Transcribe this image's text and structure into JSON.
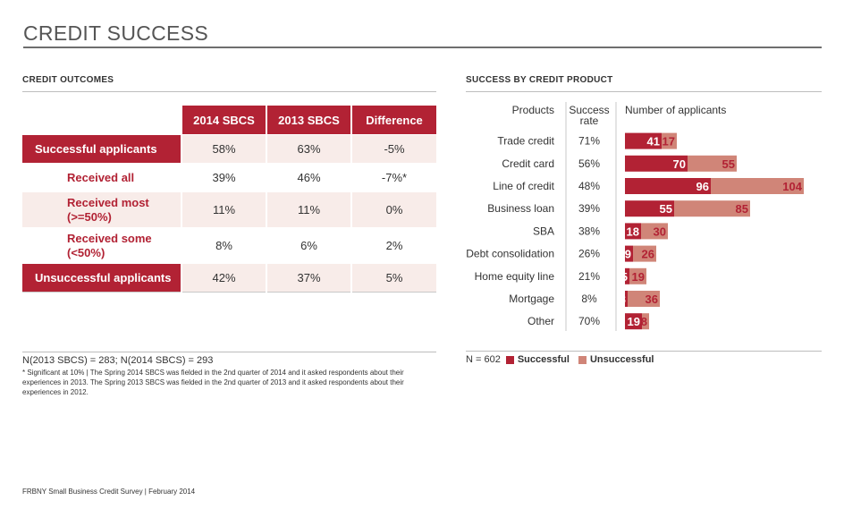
{
  "page": {
    "title": "CREDIT SUCCESS",
    "footer": "FRBNY Small Business Credit Survey  |  February 2014"
  },
  "outcomes": {
    "heading": "CREDIT OUTCOMES",
    "columns": [
      "2014 SBCS",
      "2013 SBCS",
      "Difference"
    ],
    "rows": [
      {
        "label": "Successful applicants",
        "values": [
          "58%",
          "63%",
          "-5%"
        ]
      },
      {
        "label": "Received all",
        "values": [
          "39%",
          "46%",
          "-7%*"
        ]
      },
      {
        "label": "Received most (>=50%)",
        "values": [
          "11%",
          "11%",
          "0%"
        ]
      },
      {
        "label": "Received some (<50%)",
        "values": [
          "8%",
          "6%",
          "2%"
        ]
      },
      {
        "label": "Unsuccessful applicants",
        "values": [
          "42%",
          "37%",
          "5%"
        ]
      }
    ],
    "n_note": "N(2013 SBCS) = 283; N(2014 SBCS) = 293",
    "footnote": "* Significant at 10%  |  The Spring 2014 SBCS was fielded in the 2nd quarter of 2014 and it asked respondents about their experiences in 2013. The Spring 2013 SBCS was fielded in the 2nd quarter of 2013 and it asked respondents about their experiences in 2012."
  },
  "success_by_product": {
    "heading": "SUCCESS BY CREDIT PRODUCT",
    "n_note": "N = 602"
  },
  "colors": {
    "successful": "#b22234",
    "unsuccessful": "#d08578",
    "shade": "#f8ece9"
  },
  "chart_data": {
    "type": "bar",
    "orientation": "horizontal",
    "stacked": true,
    "headers": {
      "products": "Products",
      "rate": "Success rate",
      "applicants": "Number of applicants"
    },
    "categories": [
      "Trade credit",
      "Credit card",
      "Line of credit",
      "Business loan",
      "SBA",
      "Debt consolidation",
      "Home equity line",
      "Mortgage",
      "Other"
    ],
    "success_rate": [
      "71%",
      "56%",
      "48%",
      "39%",
      "38%",
      "26%",
      "21%",
      "8%",
      "70%"
    ],
    "series": [
      {
        "name": "Successful",
        "values": [
          41,
          70,
          96,
          55,
          18,
          9,
          5,
          3,
          19
        ]
      },
      {
        "name": "Unsuccessful",
        "values": [
          17,
          55,
          104,
          85,
          30,
          26,
          19,
          36,
          8
        ]
      }
    ],
    "legend": "bottom"
  }
}
